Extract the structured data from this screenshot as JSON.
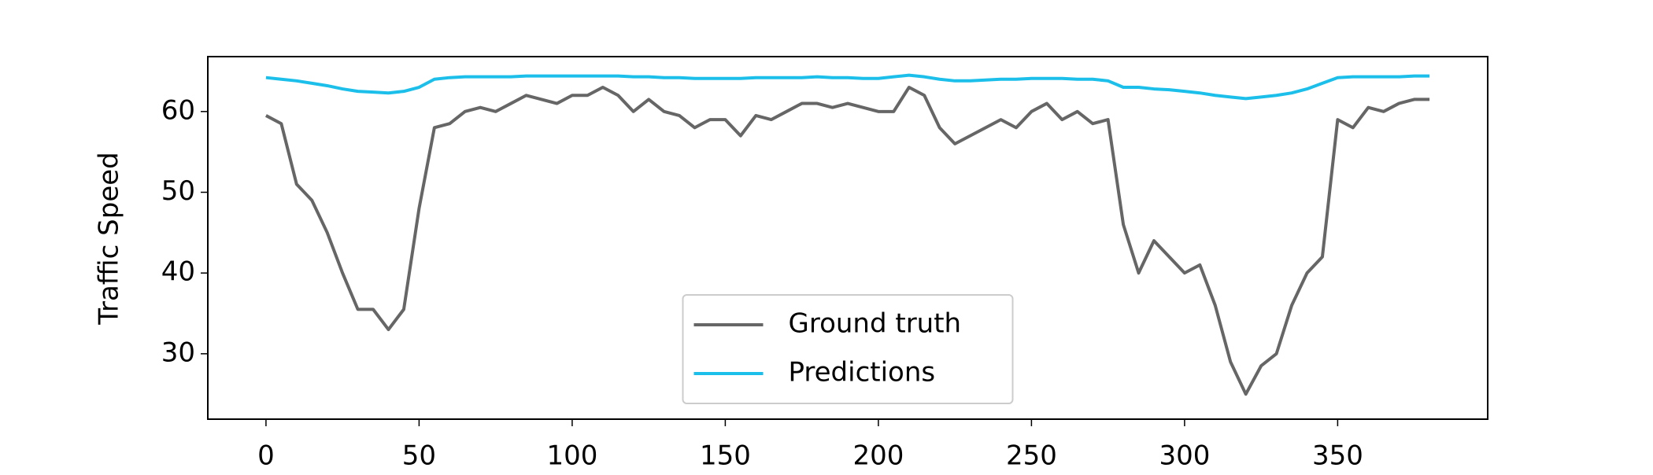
{
  "chart_data": {
    "type": "line",
    "ylabel": "Traffic Speed",
    "x": [
      0,
      5,
      10,
      15,
      20,
      25,
      30,
      35,
      40,
      45,
      50,
      55,
      60,
      65,
      70,
      75,
      80,
      85,
      90,
      95,
      100,
      105,
      110,
      115,
      120,
      125,
      130,
      135,
      140,
      145,
      150,
      155,
      160,
      165,
      170,
      175,
      180,
      185,
      190,
      195,
      200,
      205,
      210,
      215,
      220,
      225,
      230,
      235,
      240,
      245,
      250,
      255,
      260,
      265,
      270,
      275,
      280,
      285,
      290,
      295,
      300,
      305,
      310,
      315,
      320,
      325,
      330,
      335,
      340,
      345,
      350,
      355,
      360,
      365,
      370,
      375,
      380
    ],
    "series": [
      {
        "name": "Ground truth",
        "color": "#666666",
        "values": [
          59.5,
          58.5,
          51,
          49,
          45,
          40,
          35.5,
          35.5,
          33,
          35.5,
          48,
          58,
          58.5,
          60,
          60.5,
          60,
          61,
          62,
          61.5,
          61,
          62,
          62,
          63,
          62,
          60,
          61.5,
          60,
          59.5,
          58,
          59,
          59,
          57,
          59.5,
          59,
          60,
          61,
          61,
          60.5,
          61,
          60.5,
          60,
          60,
          63,
          62,
          58,
          56,
          57,
          58,
          59,
          58,
          60,
          61,
          59,
          60,
          58.5,
          59,
          46,
          40,
          44,
          42,
          40,
          41,
          36,
          29,
          25,
          28.5,
          30,
          36,
          40,
          42,
          59,
          58,
          60.5,
          60,
          61,
          61.5,
          61.5
        ]
      },
      {
        "name": "Predictions",
        "color": "#1bbfea",
        "values": [
          64.2,
          64,
          63.8,
          63.5,
          63.2,
          62.8,
          62.5,
          62.4,
          62.3,
          62.5,
          63,
          64,
          64.2,
          64.3,
          64.3,
          64.3,
          64.3,
          64.4,
          64.4,
          64.4,
          64.4,
          64.4,
          64.4,
          64.4,
          64.3,
          64.3,
          64.2,
          64.2,
          64.1,
          64.1,
          64.1,
          64.1,
          64.2,
          64.2,
          64.2,
          64.2,
          64.3,
          64.2,
          64.2,
          64.1,
          64.1,
          64.3,
          64.5,
          64.3,
          64,
          63.8,
          63.8,
          63.9,
          64,
          64,
          64.1,
          64.1,
          64.1,
          64,
          64,
          63.8,
          63,
          63,
          62.8,
          62.7,
          62.5,
          62.3,
          62,
          61.8,
          61.6,
          61.8,
          62,
          62.3,
          62.8,
          63.5,
          64.2,
          64.3,
          64.3,
          64.3,
          64.3,
          64.4,
          64.4
        ]
      }
    ],
    "xlim": [
      -19,
      399
    ],
    "ylim": [
      21.9,
      66.8
    ],
    "xticks": [
      0,
      50,
      100,
      150,
      200,
      250,
      300,
      350
    ],
    "yticks": [
      30,
      40,
      50,
      60
    ],
    "legend": "lower center"
  }
}
